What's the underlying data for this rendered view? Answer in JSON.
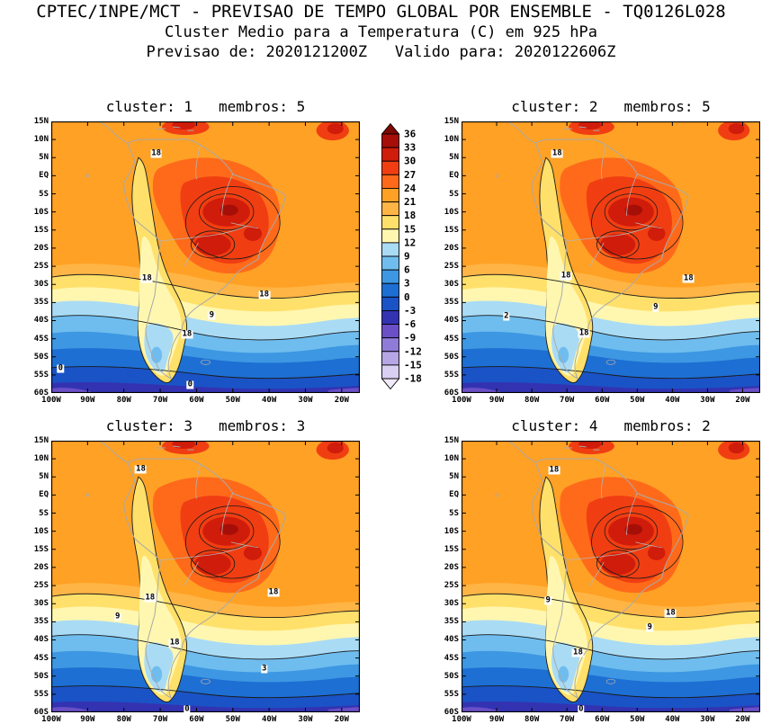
{
  "header": {
    "line1": "CPTEC/INPE/MCT - PREVISAO DE TEMPO GLOBAL POR ENSEMBLE - TQ0126L028",
    "line2": "Cluster Medio para a Temperatura (C) em 925 hPa",
    "line3": "Previsao de: 2020121200Z   Valido para: 2020122606Z"
  },
  "chart_data": {
    "type": "heatmap",
    "subtype": "filled_contour_maps_2x2_ensemble_clusters",
    "variable": "Temperatura (C) em 925 hPa",
    "model": "TQ0126L028",
    "init_time": "2020121200Z",
    "valid_time": "2020122606Z",
    "lat_ticks": [
      "15N",
      "10N",
      "5N",
      "EQ",
      "5S",
      "10S",
      "15S",
      "20S",
      "25S",
      "30S",
      "35S",
      "40S",
      "45S",
      "50S",
      "55S",
      "60S"
    ],
    "lon_ticks": [
      "100W",
      "90W",
      "80W",
      "70W",
      "60W",
      "50W",
      "40W",
      "30W",
      "20W"
    ],
    "colorbar": {
      "levels": [
        36,
        33,
        30,
        27,
        24,
        21,
        18,
        15,
        12,
        9,
        6,
        3,
        0,
        -3,
        -6,
        -9,
        -12,
        -15,
        -18
      ],
      "segment_colors": [
        "#A50F08",
        "#D01C0A",
        "#F03E12",
        "#FF6A1A",
        "#FFA125",
        "#FFB545",
        "#FFE06A",
        "#FFF7B0",
        "#A9DBF5",
        "#6FBDEE",
        "#3D97E2",
        "#1D6FD3",
        "#1A53C6",
        "#3333B2",
        "#6A4FC6",
        "#8F7BD8",
        "#B6A6E6",
        "#D9CFF2"
      ],
      "cap_top_color": "#7C0A02",
      "cap_bottom_color": "#EFE9FA"
    },
    "panels": [
      {
        "cluster": 1,
        "membros": 5,
        "title": "cluster: 1   membros: 5",
        "contour_labels": [
          {
            "t": "18",
            "x": 34,
            "y": 12
          },
          {
            "t": "18",
            "x": 31,
            "y": 58
          },
          {
            "t": "18",
            "x": 69,
            "y": 64
          },
          {
            "t": "9",
            "x": 52,
            "y": 71.5
          },
          {
            "t": "18",
            "x": 44,
            "y": 78.5
          },
          {
            "t": "0",
            "x": 3,
            "y": 91
          },
          {
            "t": "0",
            "x": 45,
            "y": 97
          }
        ]
      },
      {
        "cluster": 2,
        "membros": 5,
        "title": "cluster: 2   membros: 5",
        "contour_labels": [
          {
            "t": "18",
            "x": 32,
            "y": 12
          },
          {
            "t": "18",
            "x": 35,
            "y": 57
          },
          {
            "t": "18",
            "x": 76,
            "y": 58
          },
          {
            "t": "2",
            "x": 15,
            "y": 72
          },
          {
            "t": "9",
            "x": 65,
            "y": 68.5
          },
          {
            "t": "18",
            "x": 41,
            "y": 78
          }
        ]
      },
      {
        "cluster": 3,
        "membros": 3,
        "title": "cluster: 3   membros: 3",
        "contour_labels": [
          {
            "t": "18",
            "x": 29,
            "y": 10.5
          },
          {
            "t": "18",
            "x": 32,
            "y": 58
          },
          {
            "t": "18",
            "x": 72,
            "y": 56
          },
          {
            "t": "9",
            "x": 21.5,
            "y": 65
          },
          {
            "t": "18",
            "x": 40,
            "y": 74.5
          },
          {
            "t": "3",
            "x": 69,
            "y": 84
          },
          {
            "t": "0",
            "x": 44,
            "y": 99
          }
        ]
      },
      {
        "cluster": 4,
        "membros": 2,
        "title": "cluster: 4   membros: 2",
        "contour_labels": [
          {
            "t": "18",
            "x": 31,
            "y": 11
          },
          {
            "t": "9",
            "x": 29,
            "y": 59
          },
          {
            "t": "18",
            "x": 70,
            "y": 63.5
          },
          {
            "t": "9",
            "x": 63,
            "y": 69
          },
          {
            "t": "18",
            "x": 39,
            "y": 78
          },
          {
            "t": "0",
            "x": 40,
            "y": 99
          }
        ]
      }
    ]
  }
}
